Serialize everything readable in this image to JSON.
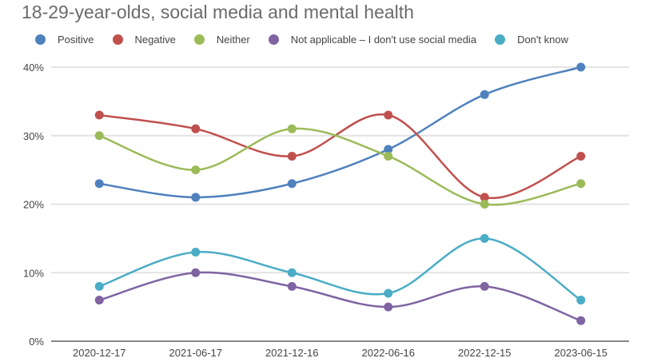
{
  "chart_data": {
    "type": "line",
    "title": "18-29-year-olds, social media and mental health",
    "xlabel": "",
    "ylabel": "",
    "categories": [
      "2020-12-17",
      "2021-06-17",
      "2021-12-16",
      "2022-06-16",
      "2022-12-15",
      "2023-06-15"
    ],
    "ylim": [
      0,
      40
    ],
    "yticks": [
      0,
      10,
      20,
      30,
      40
    ],
    "ytick_labels": [
      "0%",
      "10%",
      "20%",
      "30%",
      "40%"
    ],
    "grid": true,
    "legend_position": "top",
    "smooth": true,
    "series": [
      {
        "name": "Positive",
        "color": "#4f81bd",
        "values": [
          23,
          21,
          23,
          28,
          36,
          40
        ]
      },
      {
        "name": "Negative",
        "color": "#c0504d",
        "values": [
          33,
          31,
          27,
          33,
          21,
          27
        ]
      },
      {
        "name": "Neither",
        "color": "#9bbb59",
        "values": [
          30,
          25,
          31,
          27,
          20,
          23
        ]
      },
      {
        "name": "Not applicable – I don't use social media",
        "color": "#8064a2",
        "values": [
          6,
          10,
          8,
          5,
          8,
          3
        ]
      },
      {
        "name": "Don't know",
        "color": "#4bacc6",
        "values": [
          8,
          13,
          10,
          7,
          15,
          6
        ]
      }
    ]
  }
}
